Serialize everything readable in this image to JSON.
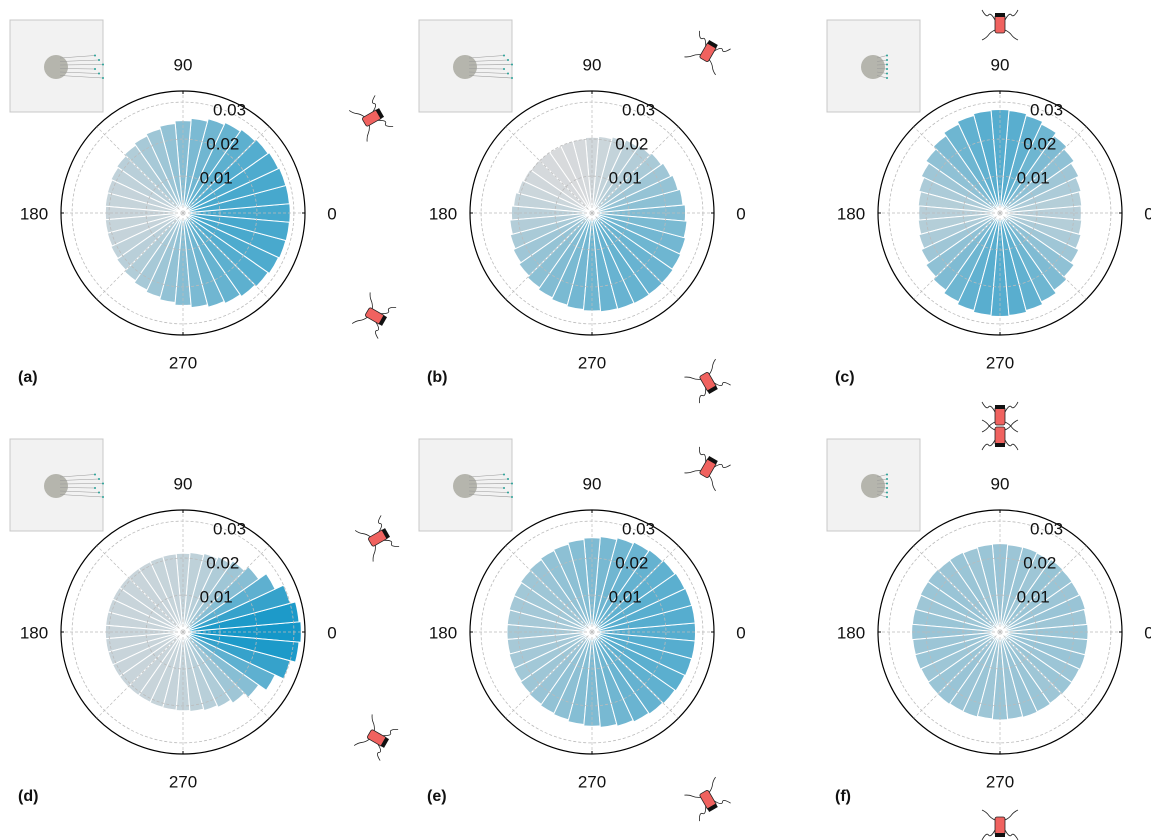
{
  "chart_data": [
    {
      "type": "polar_bar",
      "label": "(a)",
      "x": [
        0,
        10,
        20,
        30,
        40,
        50,
        60,
        70,
        80,
        90,
        100,
        110,
        120,
        130,
        140,
        150,
        160,
        170,
        180,
        190,
        200,
        210,
        220,
        230,
        240,
        250,
        260,
        270,
        280,
        290,
        300,
        310,
        320,
        330,
        340,
        350
      ],
      "values": [
        0.029,
        0.0289,
        0.0288,
        0.0285,
        0.0281,
        0.0276,
        0.027,
        0.0264,
        0.0257,
        0.025,
        0.0243,
        0.0236,
        0.023,
        0.0224,
        0.0219,
        0.0215,
        0.0212,
        0.0211,
        0.021,
        0.0211,
        0.0212,
        0.0215,
        0.0219,
        0.0224,
        0.023,
        0.0236,
        0.0243,
        0.025,
        0.0257,
        0.0264,
        0.027,
        0.0276,
        0.0281,
        0.0285,
        0.0288,
        0.0289
      ],
      "rlim": [
        0,
        0.033
      ],
      "rticks": [
        0.01,
        0.02,
        0.03
      ],
      "thetaticks": [
        0,
        90,
        180,
        270
      ],
      "colormap": [
        "#d8dadc",
        "#1597c8"
      ],
      "clim": [
        0.02,
        0.032
      ]
    },
    {
      "type": "polar_bar",
      "label": "(b)",
      "x": [
        0,
        10,
        20,
        30,
        40,
        50,
        60,
        70,
        80,
        90,
        100,
        110,
        120,
        130,
        140,
        150,
        160,
        170,
        180,
        190,
        200,
        210,
        220,
        230,
        240,
        250,
        260,
        270,
        280,
        290,
        300,
        310,
        320,
        330,
        340,
        350
      ],
      "values": [
        0.0253,
        0.0247,
        0.0241,
        0.0235,
        0.0229,
        0.0223,
        0.0218,
        0.0213,
        0.0208,
        0.0205,
        0.0202,
        0.0201,
        0.02,
        0.0201,
        0.0202,
        0.0205,
        0.0208,
        0.0213,
        0.0218,
        0.0223,
        0.0229,
        0.0235,
        0.0241,
        0.0247,
        0.0253,
        0.0258,
        0.0262,
        0.0265,
        0.0268,
        0.0269,
        0.027,
        0.0269,
        0.0268,
        0.0265,
        0.0262,
        0.0258
      ],
      "rlim": [
        0,
        0.033
      ],
      "rticks": [
        0.01,
        0.02,
        0.03
      ],
      "thetaticks": [
        0,
        90,
        180,
        270
      ],
      "colormap": [
        "#d8dadc",
        "#1597c8"
      ],
      "clim": [
        0.02,
        0.032
      ]
    },
    {
      "type": "polar_bar",
      "label": "(c)",
      "x": [
        0,
        10,
        20,
        30,
        40,
        50,
        60,
        70,
        80,
        90,
        100,
        110,
        120,
        130,
        140,
        150,
        160,
        170,
        180,
        190,
        200,
        210,
        220,
        230,
        240,
        250,
        260,
        270,
        280,
        290,
        300,
        310,
        320,
        330,
        340,
        350
      ],
      "values": [
        0.022,
        0.0222,
        0.0227,
        0.0235,
        0.0245,
        0.0255,
        0.0265,
        0.0273,
        0.0278,
        0.028,
        0.0278,
        0.0273,
        0.0265,
        0.0255,
        0.0245,
        0.0235,
        0.0227,
        0.0222,
        0.022,
        0.0222,
        0.0227,
        0.0235,
        0.0245,
        0.0255,
        0.0265,
        0.0273,
        0.0278,
        0.028,
        0.0278,
        0.0273,
        0.0265,
        0.0255,
        0.0245,
        0.0235,
        0.0227,
        0.0222
      ],
      "rlim": [
        0,
        0.033
      ],
      "rticks": [
        0.01,
        0.02,
        0.03
      ],
      "thetaticks": [
        0,
        90,
        180,
        270
      ],
      "colormap": [
        "#d8dadc",
        "#1597c8"
      ],
      "clim": [
        0.02,
        0.032
      ]
    },
    {
      "type": "polar_bar",
      "label": "(d)",
      "x": [
        0,
        10,
        20,
        30,
        40,
        50,
        60,
        70,
        80,
        90,
        100,
        110,
        120,
        130,
        140,
        150,
        160,
        170,
        180,
        190,
        200,
        210,
        220,
        230,
        240,
        250,
        260,
        270,
        280,
        290,
        300,
        310,
        320,
        330,
        340,
        350
      ],
      "values": [
        0.032,
        0.0315,
        0.03,
        0.0275,
        0.025,
        0.0235,
        0.0225,
        0.022,
        0.0216,
        0.0213,
        0.0212,
        0.0211,
        0.021,
        0.021,
        0.021,
        0.021,
        0.021,
        0.021,
        0.021,
        0.021,
        0.021,
        0.021,
        0.021,
        0.021,
        0.021,
        0.0211,
        0.0212,
        0.0213,
        0.0216,
        0.022,
        0.0225,
        0.0235,
        0.025,
        0.0275,
        0.03,
        0.0315
      ],
      "rlim": [
        0,
        0.033
      ],
      "rticks": [
        0.01,
        0.02,
        0.03
      ],
      "thetaticks": [
        0,
        90,
        180,
        270
      ],
      "colormap": [
        "#d8dadc",
        "#1597c8"
      ],
      "clim": [
        0.02,
        0.032
      ]
    },
    {
      "type": "polar_bar",
      "label": "(e)",
      "x": [
        0,
        10,
        20,
        30,
        40,
        50,
        60,
        70,
        80,
        90,
        100,
        110,
        120,
        130,
        140,
        150,
        160,
        170,
        180,
        190,
        200,
        210,
        220,
        230,
        240,
        250,
        260,
        270,
        280,
        290,
        300,
        310,
        320,
        330,
        340,
        350
      ],
      "values": [
        0.028,
        0.028,
        0.0279,
        0.0277,
        0.0274,
        0.0271,
        0.0268,
        0.0264,
        0.0259,
        0.0255,
        0.0251,
        0.0246,
        0.0243,
        0.0239,
        0.0236,
        0.0233,
        0.0232,
        0.023,
        0.023,
        0.023,
        0.0232,
        0.0233,
        0.0236,
        0.0239,
        0.0243,
        0.0246,
        0.0251,
        0.0255,
        0.0259,
        0.0264,
        0.0268,
        0.0271,
        0.0274,
        0.0277,
        0.0279,
        0.028
      ],
      "rlim": [
        0,
        0.033
      ],
      "rticks": [
        0.01,
        0.02,
        0.03
      ],
      "thetaticks": [
        0,
        90,
        180,
        270
      ],
      "colormap": [
        "#d8dadc",
        "#1597c8"
      ],
      "clim": [
        0.02,
        0.032
      ]
    },
    {
      "type": "polar_bar",
      "label": "(f)",
      "x": [
        0,
        10,
        20,
        30,
        40,
        50,
        60,
        70,
        80,
        90,
        100,
        110,
        120,
        130,
        140,
        150,
        160,
        170,
        180,
        190,
        200,
        210,
        220,
        230,
        240,
        250,
        260,
        270,
        280,
        290,
        300,
        310,
        320,
        330,
        340,
        350
      ],
      "values": [
        0.0238,
        0.0236,
        0.0239,
        0.0237,
        0.0238,
        0.024,
        0.0236,
        0.0238,
        0.0237,
        0.0239,
        0.0238,
        0.0236,
        0.0238,
        0.0237,
        0.0239,
        0.0238,
        0.0236,
        0.0238,
        0.0239,
        0.0237,
        0.0238,
        0.0236,
        0.0238,
        0.0239,
        0.0237,
        0.0238,
        0.0236,
        0.0238,
        0.0237,
        0.0239,
        0.0238,
        0.0236,
        0.0238,
        0.0237,
        0.0239,
        0.0238
      ],
      "rlim": [
        0,
        0.033
      ],
      "rticks": [
        0.01,
        0.02,
        0.03
      ],
      "thetaticks": [
        0,
        90,
        180,
        270
      ],
      "colormap": [
        "#d8dadc",
        "#1597c8"
      ],
      "clim": [
        0.02,
        0.032
      ]
    }
  ]
}
